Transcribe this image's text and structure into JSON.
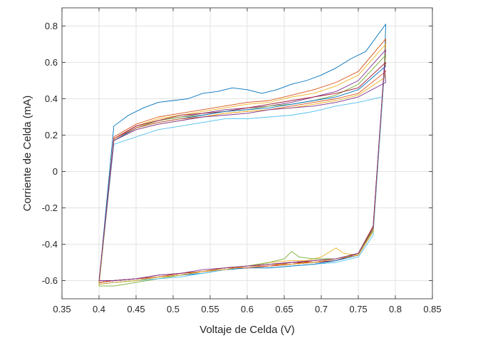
{
  "chart_data": {
    "type": "line",
    "title": "",
    "xlabel": "Voltaje de Celda (V)",
    "ylabel": "Corriente de Celda (mA)",
    "xlim": [
      0.35,
      0.85
    ],
    "ylim": [
      -0.7,
      0.9
    ],
    "xticks": [
      0.35,
      0.4,
      0.45,
      0.5,
      0.55,
      0.6,
      0.65,
      0.7,
      0.75,
      0.8,
      0.85
    ],
    "xtick_labels": [
      "0.35",
      "0.4",
      "0.45",
      "0.5",
      "0.55",
      "0.6",
      "0.65",
      "0.7",
      "0.75",
      "0.8",
      "0.85"
    ],
    "yticks": [
      -0.6,
      -0.4,
      -0.2,
      0,
      0.2,
      0.4,
      0.6,
      0.8
    ],
    "ytick_labels": [
      "-0.6",
      "-0.4",
      "-0.2",
      "0",
      "0.2",
      "0.4",
      "0.6",
      "0.8"
    ],
    "grid": true,
    "legend": "none",
    "series": [
      {
        "color": "#0072BD",
        "x": [
          0.4,
          0.42,
          0.44,
          0.46,
          0.48,
          0.5,
          0.52,
          0.54,
          0.56,
          0.58,
          0.6,
          0.62,
          0.64,
          0.66,
          0.68,
          0.7,
          0.72,
          0.74,
          0.76,
          0.787,
          0.785,
          0.77,
          0.75,
          0.72,
          0.69,
          0.66,
          0.63,
          0.6,
          0.57,
          0.54,
          0.51,
          0.48,
          0.45,
          0.42,
          0.4,
          0.4
        ],
        "y": [
          -0.61,
          0.25,
          0.31,
          0.35,
          0.38,
          0.39,
          0.4,
          0.43,
          0.44,
          0.46,
          0.45,
          0.43,
          0.45,
          0.48,
          0.5,
          0.53,
          0.57,
          0.62,
          0.66,
          0.81,
          0.56,
          -0.3,
          -0.45,
          -0.48,
          -0.5,
          -0.51,
          -0.52,
          -0.53,
          -0.54,
          -0.56,
          -0.57,
          -0.58,
          -0.59,
          -0.6,
          -0.61,
          -0.61
        ]
      },
      {
        "color": "#D95319",
        "x": [
          0.4,
          0.42,
          0.45,
          0.48,
          0.51,
          0.54,
          0.57,
          0.6,
          0.63,
          0.66,
          0.69,
          0.72,
          0.75,
          0.787,
          0.785,
          0.77,
          0.75,
          0.72,
          0.69,
          0.66,
          0.63,
          0.6,
          0.57,
          0.54,
          0.51,
          0.48,
          0.45,
          0.42,
          0.4,
          0.4
        ],
        "y": [
          -0.61,
          0.19,
          0.26,
          0.3,
          0.32,
          0.34,
          0.36,
          0.38,
          0.39,
          0.42,
          0.45,
          0.49,
          0.55,
          0.73,
          0.55,
          -0.31,
          -0.45,
          -0.48,
          -0.49,
          -0.5,
          -0.52,
          -0.52,
          -0.53,
          -0.55,
          -0.57,
          -0.58,
          -0.59,
          -0.6,
          -0.61,
          -0.61
        ]
      },
      {
        "color": "#EDB120",
        "x": [
          0.4,
          0.42,
          0.45,
          0.48,
          0.51,
          0.54,
          0.57,
          0.6,
          0.63,
          0.66,
          0.69,
          0.72,
          0.75,
          0.787,
          0.785,
          0.77,
          0.75,
          0.73,
          0.72,
          0.7,
          0.68,
          0.66,
          0.63,
          0.6,
          0.57,
          0.54,
          0.51,
          0.48,
          0.45,
          0.42,
          0.4,
          0.4
        ],
        "y": [
          -0.62,
          0.18,
          0.25,
          0.29,
          0.31,
          0.33,
          0.35,
          0.37,
          0.38,
          0.41,
          0.43,
          0.47,
          0.53,
          0.7,
          0.54,
          -0.32,
          -0.46,
          -0.45,
          -0.42,
          -0.47,
          -0.49,
          -0.49,
          -0.5,
          -0.52,
          -0.53,
          -0.55,
          -0.57,
          -0.58,
          -0.6,
          -0.61,
          -0.62,
          -0.62
        ]
      },
      {
        "color": "#7E2F8E",
        "x": [
          0.4,
          0.42,
          0.45,
          0.48,
          0.51,
          0.54,
          0.57,
          0.6,
          0.63,
          0.66,
          0.69,
          0.72,
          0.75,
          0.787,
          0.785,
          0.77,
          0.75,
          0.72,
          0.69,
          0.66,
          0.63,
          0.6,
          0.57,
          0.54,
          0.51,
          0.48,
          0.45,
          0.42,
          0.4,
          0.4
        ],
        "y": [
          -0.61,
          0.18,
          0.25,
          0.28,
          0.3,
          0.32,
          0.34,
          0.35,
          0.36,
          0.38,
          0.41,
          0.44,
          0.5,
          0.67,
          0.55,
          -0.33,
          -0.46,
          -0.49,
          -0.5,
          -0.51,
          -0.51,
          -0.52,
          -0.54,
          -0.55,
          -0.56,
          -0.58,
          -0.59,
          -0.6,
          -0.61,
          -0.61
        ]
      },
      {
        "color": "#77AC30",
        "x": [
          0.4,
          0.42,
          0.45,
          0.48,
          0.51,
          0.54,
          0.57,
          0.6,
          0.63,
          0.66,
          0.69,
          0.72,
          0.75,
          0.787,
          0.785,
          0.77,
          0.75,
          0.72,
          0.69,
          0.67,
          0.66,
          0.65,
          0.63,
          0.6,
          0.57,
          0.54,
          0.51,
          0.48,
          0.45,
          0.42,
          0.4,
          0.4
        ],
        "y": [
          -0.63,
          0.17,
          0.24,
          0.28,
          0.3,
          0.31,
          0.33,
          0.34,
          0.36,
          0.37,
          0.39,
          0.42,
          0.48,
          0.64,
          0.56,
          -0.32,
          -0.45,
          -0.48,
          -0.48,
          -0.47,
          -0.44,
          -0.48,
          -0.5,
          -0.52,
          -0.53,
          -0.55,
          -0.57,
          -0.59,
          -0.61,
          -0.63,
          -0.63,
          -0.63
        ]
      },
      {
        "color": "#4DBEEE",
        "x": [
          0.4,
          0.42,
          0.45,
          0.48,
          0.51,
          0.54,
          0.57,
          0.6,
          0.63,
          0.66,
          0.69,
          0.72,
          0.75,
          0.782,
          0.785,
          0.77,
          0.75,
          0.72,
          0.69,
          0.66,
          0.63,
          0.6,
          0.57,
          0.54,
          0.51,
          0.48,
          0.45,
          0.42,
          0.4,
          0.4
        ],
        "y": [
          -0.62,
          0.15,
          0.19,
          0.23,
          0.25,
          0.27,
          0.29,
          0.29,
          0.3,
          0.31,
          0.33,
          0.36,
          0.38,
          0.41,
          0.53,
          -0.35,
          -0.47,
          -0.5,
          -0.51,
          -0.52,
          -0.53,
          -0.53,
          -0.54,
          -0.56,
          -0.58,
          -0.59,
          -0.6,
          -0.61,
          -0.62,
          -0.62
        ]
      },
      {
        "color": "#A2142F",
        "x": [
          0.4,
          0.42,
          0.45,
          0.48,
          0.51,
          0.54,
          0.57,
          0.6,
          0.63,
          0.66,
          0.69,
          0.72,
          0.75,
          0.787,
          0.785,
          0.77,
          0.75,
          0.72,
          0.69,
          0.66,
          0.63,
          0.6,
          0.57,
          0.54,
          0.51,
          0.48,
          0.45,
          0.42,
          0.4,
          0.4
        ],
        "y": [
          -0.61,
          0.18,
          0.25,
          0.28,
          0.31,
          0.32,
          0.33,
          0.35,
          0.37,
          0.39,
          0.41,
          0.43,
          0.46,
          0.6,
          0.56,
          -0.31,
          -0.45,
          -0.49,
          -0.5,
          -0.5,
          -0.51,
          -0.52,
          -0.53,
          -0.55,
          -0.56,
          -0.57,
          -0.59,
          -0.6,
          -0.61,
          -0.61
        ]
      },
      {
        "color": "#0072BD",
        "x": [
          0.4,
          0.42,
          0.45,
          0.48,
          0.51,
          0.54,
          0.57,
          0.6,
          0.63,
          0.66,
          0.69,
          0.72,
          0.75,
          0.787,
          0.785,
          0.77,
          0.75,
          0.72,
          0.69,
          0.66,
          0.63,
          0.6,
          0.57,
          0.54,
          0.51,
          0.48,
          0.45,
          0.42,
          0.4,
          0.4
        ],
        "y": [
          -0.62,
          0.17,
          0.24,
          0.27,
          0.29,
          0.31,
          0.33,
          0.34,
          0.35,
          0.37,
          0.39,
          0.41,
          0.45,
          0.58,
          0.57,
          -0.33,
          -0.46,
          -0.49,
          -0.51,
          -0.52,
          -0.53,
          -0.53,
          -0.54,
          -0.55,
          -0.57,
          -0.58,
          -0.6,
          -0.61,
          -0.62,
          -0.62
        ]
      },
      {
        "color": "#D95319",
        "x": [
          0.4,
          0.42,
          0.45,
          0.48,
          0.51,
          0.54,
          0.57,
          0.6,
          0.63,
          0.66,
          0.69,
          0.72,
          0.75,
          0.787,
          0.785,
          0.77,
          0.75,
          0.72,
          0.69,
          0.66,
          0.63,
          0.6,
          0.57,
          0.54,
          0.51,
          0.48,
          0.45,
          0.42,
          0.4,
          0.4
        ],
        "y": [
          -0.61,
          0.18,
          0.24,
          0.27,
          0.29,
          0.3,
          0.32,
          0.33,
          0.34,
          0.36,
          0.38,
          0.4,
          0.43,
          0.55,
          0.56,
          -0.3,
          -0.45,
          -0.48,
          -0.49,
          -0.51,
          -0.52,
          -0.53,
          -0.53,
          -0.55,
          -0.56,
          -0.58,
          -0.59,
          -0.6,
          -0.61,
          -0.61
        ]
      },
      {
        "color": "#EDB120",
        "x": [
          0.4,
          0.42,
          0.45,
          0.48,
          0.51,
          0.54,
          0.57,
          0.6,
          0.63,
          0.66,
          0.69,
          0.72,
          0.75,
          0.787,
          0.785,
          0.77,
          0.75,
          0.72,
          0.69,
          0.66,
          0.63,
          0.6,
          0.57,
          0.54,
          0.51,
          0.48,
          0.45,
          0.42,
          0.4,
          0.4
        ],
        "y": [
          -0.62,
          0.17,
          0.23,
          0.26,
          0.28,
          0.3,
          0.32,
          0.33,
          0.34,
          0.35,
          0.37,
          0.39,
          0.42,
          0.52,
          0.57,
          -0.33,
          -0.46,
          -0.48,
          -0.5,
          -0.51,
          -0.51,
          -0.52,
          -0.54,
          -0.55,
          -0.57,
          -0.58,
          -0.6,
          -0.61,
          -0.62,
          -0.62
        ]
      },
      {
        "color": "#7E2F8E",
        "x": [
          0.4,
          0.42,
          0.45,
          0.48,
          0.51,
          0.54,
          0.57,
          0.6,
          0.63,
          0.66,
          0.69,
          0.72,
          0.75,
          0.787,
          0.785,
          0.77,
          0.75,
          0.72,
          0.69,
          0.66,
          0.63,
          0.6,
          0.57,
          0.54,
          0.51,
          0.48,
          0.45,
          0.42,
          0.4,
          0.4
        ],
        "y": [
          -0.6,
          0.17,
          0.23,
          0.26,
          0.28,
          0.3,
          0.31,
          0.32,
          0.34,
          0.35,
          0.36,
          0.38,
          0.41,
          0.49,
          0.58,
          -0.31,
          -0.45,
          -0.48,
          -0.49,
          -0.5,
          -0.51,
          -0.52,
          -0.53,
          -0.54,
          -0.56,
          -0.57,
          -0.59,
          -0.6,
          -0.6,
          -0.6
        ]
      }
    ]
  }
}
